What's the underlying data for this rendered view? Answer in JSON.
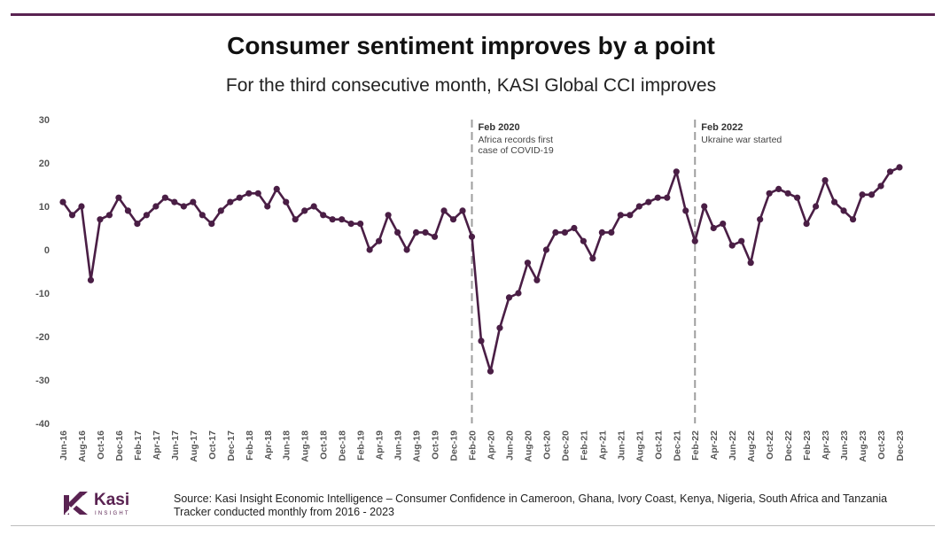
{
  "header": {
    "title": "Consumer sentiment improves by a point",
    "subtitle": "For the third consecutive month, KASI Global CCI improves"
  },
  "colors": {
    "accent": "#5a2352",
    "line": "#4a1e45",
    "event_line": "#9e9e9e",
    "axis_text": "#555555"
  },
  "footer": {
    "logo_word": "Kasi",
    "logo_sub": "INSIGHT",
    "source_line1": "Source: Kasi Insight Economic Intelligence – Consumer Confidence in Cameroon, Ghana, Ivory Coast, Kenya, Nigeria, South Africa and Tanzania",
    "source_line2": "Tracker conducted monthly from 2016 - 2023"
  },
  "chart_data": {
    "type": "line",
    "title": "Consumer sentiment improves by a point",
    "subtitle": "For the third consecutive month, KASI Global CCI improves",
    "xlabel": "",
    "ylabel": "",
    "ylim": [
      -40,
      30
    ],
    "yticks": [
      30,
      20,
      10,
      0,
      -10,
      -20,
      -30,
      -40
    ],
    "grid": false,
    "legend": "none",
    "series": [
      {
        "name": "KASI Global CCI",
        "values": [
          11,
          8,
          10,
          -7,
          7,
          8,
          12,
          9,
          6,
          8,
          10,
          12,
          11,
          10,
          11,
          8,
          6,
          9,
          11,
          12,
          13,
          13,
          10,
          14,
          11,
          7,
          9,
          10,
          8,
          7,
          7,
          6,
          6,
          0,
          2,
          8,
          4,
          0,
          4,
          4,
          3,
          9,
          7,
          9,
          3,
          -21,
          -28,
          -18,
          -11,
          -10,
          -3,
          -7,
          0,
          4,
          4,
          5,
          2,
          -2,
          4,
          4,
          8,
          8,
          10,
          11,
          12,
          12,
          18,
          9,
          2,
          10,
          5,
          6,
          1,
          2,
          -3,
          7,
          13,
          14,
          13,
          12,
          6,
          10,
          16,
          11,
          9,
          7,
          12.7,
          12.7,
          14.7,
          18,
          19
        ]
      }
    ],
    "x_tick_labels": [
      "Jun-16",
      "Aug-16",
      "Oct-16",
      "Dec-16",
      "Feb-17",
      "Apr-17",
      "Jun-17",
      "Aug-17",
      "Oct-17",
      "Dec-17",
      "Feb-18",
      "Apr-18",
      "Jun-18",
      "Aug-18",
      "Oct-18",
      "Dec-18",
      "Feb-19",
      "Apr-19",
      "Jun-19",
      "Aug-19",
      "Oct-19",
      "Dec-19",
      "Feb-20",
      "Apr-20",
      "Jun-20",
      "Aug-20",
      "Oct-20",
      "Dec-20",
      "Feb-21",
      "Apr-21",
      "Jun-21",
      "Aug-21",
      "Oct-21",
      "Dec-21",
      "Feb-22",
      "Apr-22",
      "Jun-22",
      "Aug-22",
      "Oct-22",
      "Dec-22",
      "Feb-23",
      "Apr-23",
      "Jun-23",
      "Aug-23",
      "Oct-23",
      "Dec-23"
    ],
    "annotations": [
      {
        "at_label": "Feb-20",
        "title": "Feb 2020",
        "lines": [
          "Africa records first",
          "case of COVID-19"
        ]
      },
      {
        "at_label": "Feb-22",
        "title": "Feb 2022",
        "lines": [
          "Ukraine war started"
        ]
      }
    ]
  }
}
